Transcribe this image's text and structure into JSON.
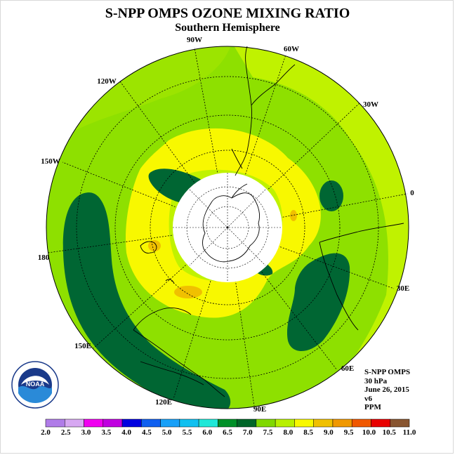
{
  "title": "S-NPP OMPS OZONE MIXING RATIO",
  "subtitle": "Southern Hemisphere",
  "longitude_labels": [
    {
      "text": "90W"
    },
    {
      "text": "60W"
    },
    {
      "text": "120W"
    },
    {
      "text": "30W"
    },
    {
      "text": "150W"
    },
    {
      "text": "0"
    },
    {
      "text": "180"
    },
    {
      "text": "30E"
    },
    {
      "text": "150E"
    },
    {
      "text": "60E"
    },
    {
      "text": "120E"
    },
    {
      "text": "90E"
    }
  ],
  "info": {
    "instrument": "S-NPP OMPS",
    "level": "30 hPa",
    "date": "June 26, 2015",
    "version": "v6",
    "units": "PPM"
  },
  "logo": {
    "text": "NOAA",
    "ring_text": "NATIONAL OCEANIC AND ATMOSPHERIC ADMINISTRATION · U.S. DEPARTMENT OF COMMERCE"
  },
  "colorbar": {
    "ticks": [
      "2.0",
      "2.5",
      "3.0",
      "3.5",
      "4.0",
      "4.5",
      "5.0",
      "5.5",
      "6.0",
      "6.5",
      "7.0",
      "7.5",
      "8.0",
      "8.5",
      "9.0",
      "9.5",
      "10.0",
      "10.5",
      "11.0"
    ],
    "colors": [
      "#b07ce8",
      "#d7a8f2",
      "#f000f0",
      "#c000e0",
      "#0000e0",
      "#1060f0",
      "#18a0f8",
      "#10c0f0",
      "#20e8d8",
      "#009028",
      "#006628",
      "#80d800",
      "#b8f000",
      "#f8f800",
      "#f0c000",
      "#f09800",
      "#f05800",
      "#e80000",
      "#885530"
    ]
  },
  "map_colors": {
    "dark_green": "#006633",
    "mid_green": "#8ee000",
    "light_green": "#c0f200",
    "yellow": "#f8f800",
    "orange": "#f0c000"
  }
}
